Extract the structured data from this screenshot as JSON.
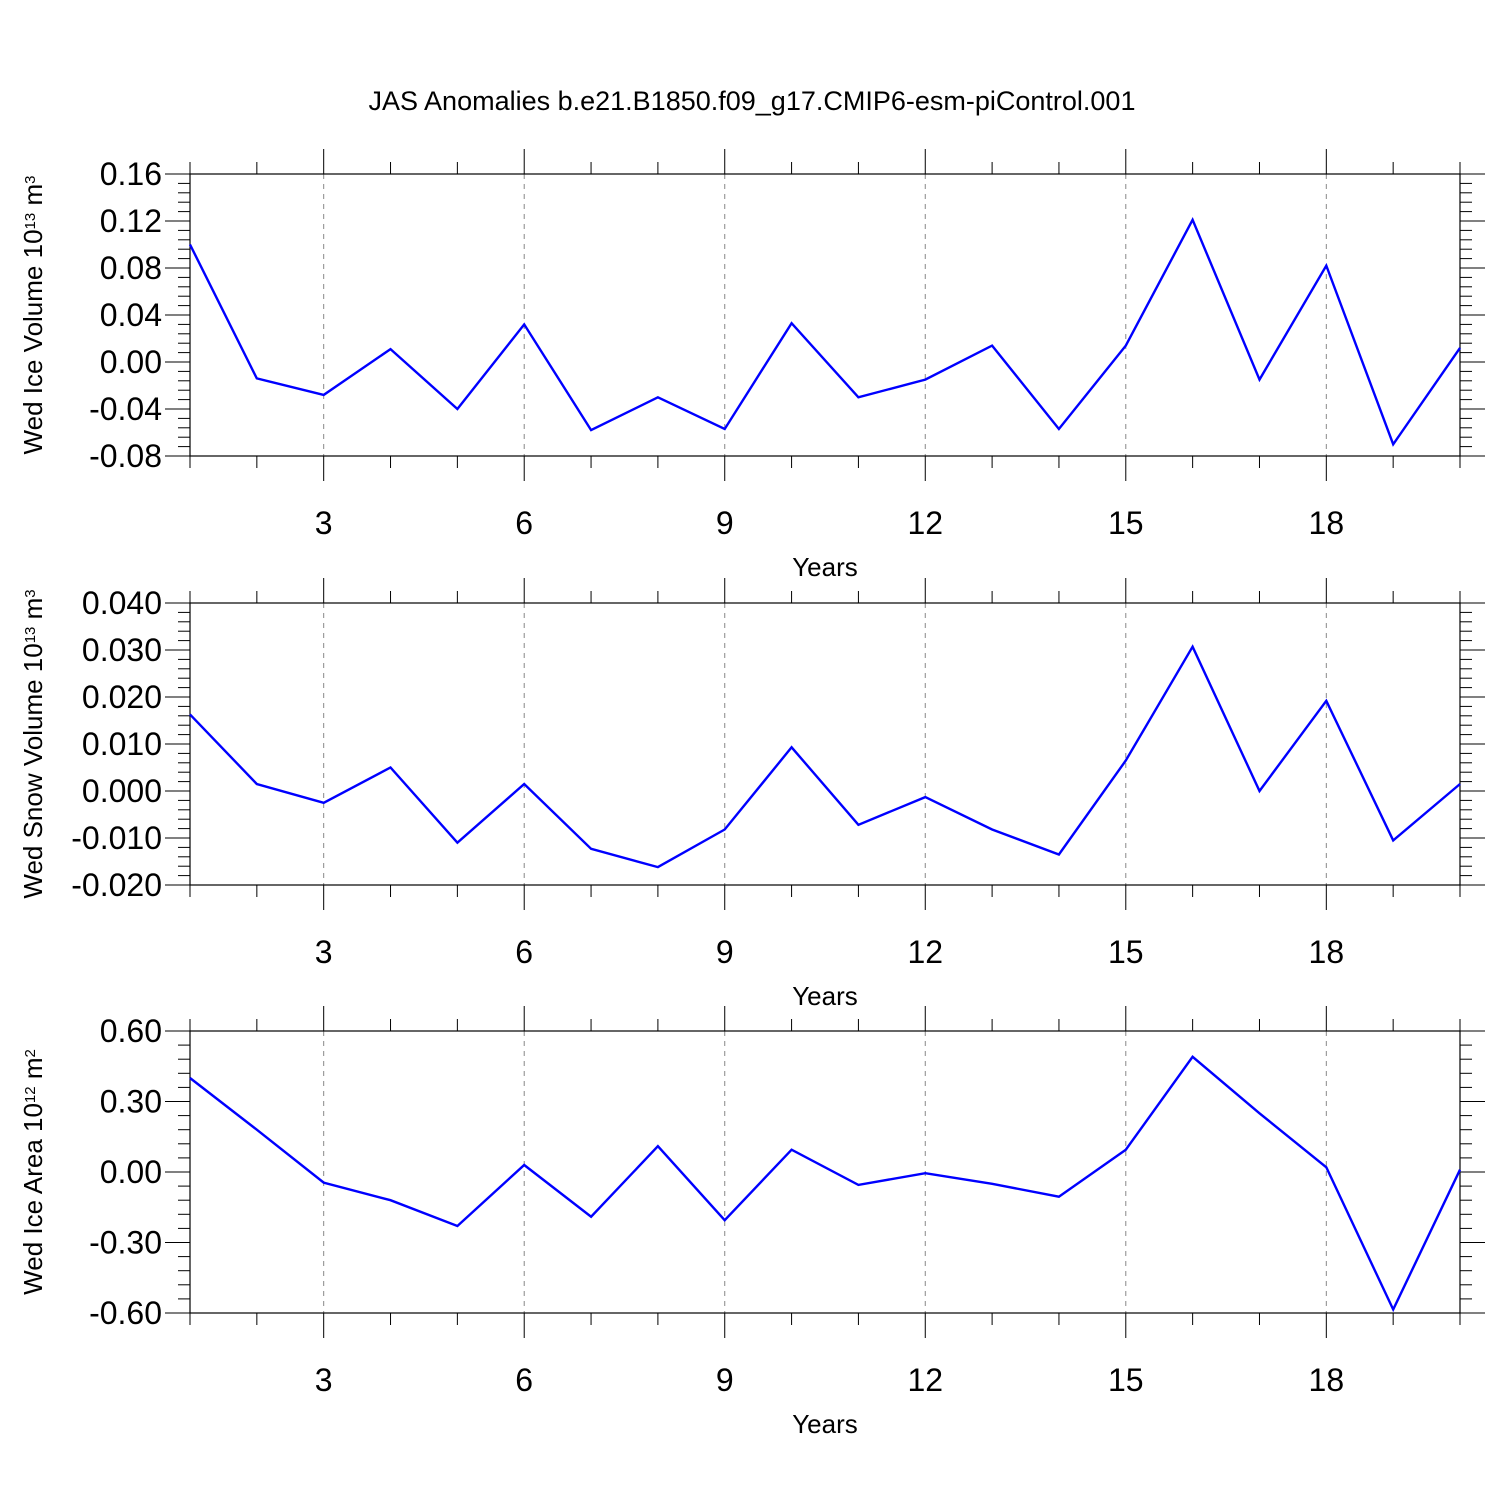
{
  "title": "JAS Anomalies b.e21.B1850.f09_g17.CMIP6-esm-piControl.001",
  "line_color": "#0000ff",
  "chart_data": [
    {
      "type": "line",
      "title": "",
      "xlabel": "Years",
      "ylabel": {
        "text": "Wed Ice Volume 10",
        "exp": "13",
        "unit": " m",
        "unit_exp": "3"
      },
      "xlim": [
        1,
        20
      ],
      "ylim": [
        -0.08,
        0.16
      ],
      "x_ticks": [
        3,
        6,
        9,
        12,
        15,
        18
      ],
      "x_tick_labels": [
        "3",
        "6",
        "9",
        "12",
        "15",
        "18"
      ],
      "y_ticks": [
        -0.08,
        -0.04,
        0.0,
        0.04,
        0.08,
        0.12,
        0.16
      ],
      "y_tick_labels": [
        "-0.08",
        "-0.04",
        "0.00",
        "0.04",
        "0.08",
        "0.12",
        "0.16"
      ],
      "grid": "vertical dashed at major x ticks",
      "x": [
        1,
        2,
        3,
        4,
        5,
        6,
        7,
        8,
        9,
        10,
        11,
        12,
        13,
        14,
        15,
        16,
        17,
        18,
        19,
        20
      ],
      "values": [
        0.1,
        -0.014,
        -0.028,
        0.011,
        -0.04,
        0.032,
        -0.058,
        -0.03,
        -0.057,
        0.033,
        -0.03,
        -0.015,
        0.014,
        -0.057,
        0.014,
        0.121,
        -0.015,
        0.082,
        -0.07,
        0.012
      ]
    },
    {
      "type": "line",
      "title": "",
      "xlabel": "Years",
      "ylabel": {
        "text": "Wed Snow Volume 10",
        "exp": "13",
        "unit": " m",
        "unit_exp": "3"
      },
      "xlim": [
        1,
        20
      ],
      "ylim": [
        -0.02,
        0.04
      ],
      "x_ticks": [
        3,
        6,
        9,
        12,
        15,
        18
      ],
      "x_tick_labels": [
        "3",
        "6",
        "9",
        "12",
        "15",
        "18"
      ],
      "y_ticks": [
        -0.02,
        -0.01,
        0.0,
        0.01,
        0.02,
        0.03,
        0.04
      ],
      "y_tick_labels": [
        "-0.020",
        "-0.010",
        "0.000",
        "0.010",
        "0.020",
        "0.030",
        "0.040"
      ],
      "grid": "vertical dashed at major x ticks",
      "x": [
        1,
        2,
        3,
        4,
        5,
        6,
        7,
        8,
        9,
        10,
        11,
        12,
        13,
        14,
        15,
        16,
        17,
        18,
        19,
        20
      ],
      "values": [
        0.0163,
        0.0015,
        -0.0025,
        0.005,
        -0.011,
        0.0015,
        -0.0123,
        -0.0162,
        -0.0082,
        0.0093,
        -0.0072,
        -0.0013,
        -0.0082,
        -0.0135,
        0.0065,
        0.0307,
        0.0,
        0.0192,
        -0.0105,
        0.0015
      ]
    },
    {
      "type": "line",
      "title": "",
      "xlabel": "Years",
      "ylabel": {
        "text": "Wed Ice Area 10",
        "exp": "12",
        "unit": " m",
        "unit_exp": "2"
      },
      "xlim": [
        1,
        20
      ],
      "ylim": [
        -0.6,
        0.6
      ],
      "x_ticks": [
        3,
        6,
        9,
        12,
        15,
        18
      ],
      "x_tick_labels": [
        "3",
        "6",
        "9",
        "12",
        "15",
        "18"
      ],
      "y_ticks": [
        -0.6,
        -0.3,
        0.0,
        0.3,
        0.6
      ],
      "y_tick_labels": [
        "-0.60",
        "-0.30",
        "0.00",
        "0.30",
        "0.60"
      ],
      "grid": "vertical dashed at major x ticks",
      "x": [
        1,
        2,
        3,
        4,
        5,
        6,
        7,
        8,
        9,
        10,
        11,
        12,
        13,
        14,
        15,
        16,
        17,
        18,
        19,
        20
      ],
      "values": [
        0.4,
        0.18,
        -0.045,
        -0.12,
        -0.23,
        0.03,
        -0.19,
        0.11,
        -0.205,
        0.095,
        -0.055,
        -0.005,
        -0.05,
        -0.105,
        0.095,
        0.49,
        0.25,
        0.02,
        -0.585,
        0.01
      ]
    }
  ]
}
